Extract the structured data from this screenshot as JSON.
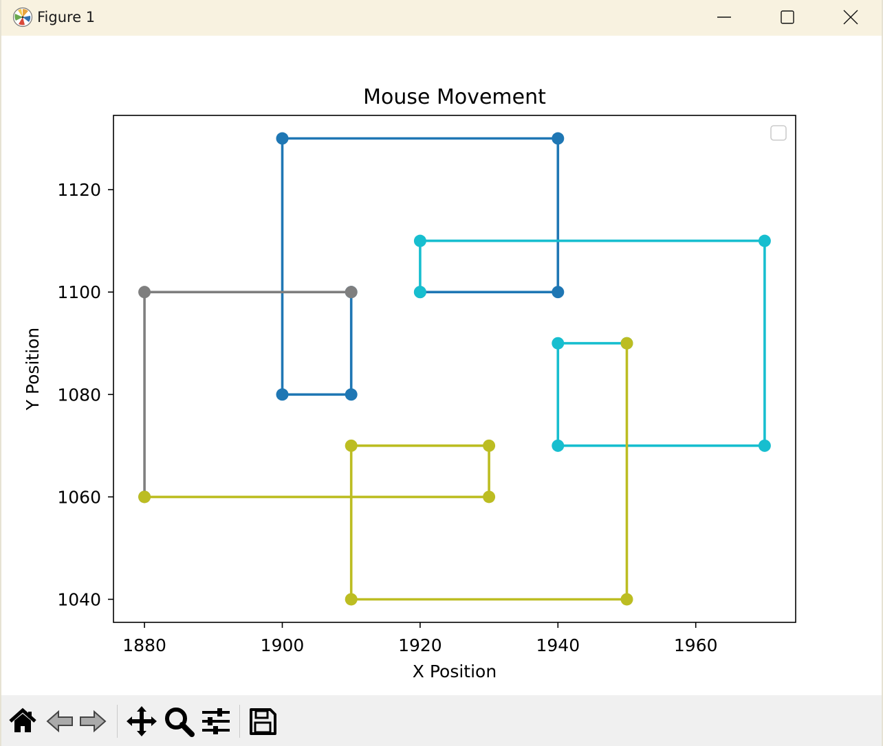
{
  "window": {
    "title": "Figure 1",
    "controls": {
      "minimize": "minimize-icon",
      "maximize": "maximize-icon",
      "close": "close-icon"
    }
  },
  "toolbar": {
    "buttons": [
      {
        "name": "home-icon",
        "tooltip": "Home"
      },
      {
        "name": "back-icon",
        "tooltip": "Back"
      },
      {
        "name": "forward-icon",
        "tooltip": "Forward"
      },
      {
        "name": "pan-icon",
        "tooltip": "Pan"
      },
      {
        "name": "zoom-icon",
        "tooltip": "Zoom"
      },
      {
        "name": "configure-subplots-icon",
        "tooltip": "Subplots"
      },
      {
        "name": "save-icon",
        "tooltip": "Save"
      }
    ]
  },
  "chart_data": {
    "type": "line",
    "title": "Mouse Movement",
    "xlabel": "X Position",
    "ylabel": "Y Position",
    "xlim": [
      1875.5,
      1974.5
    ],
    "ylim": [
      1035.5,
      1134.5
    ],
    "xticks": [
      1880,
      1900,
      1920,
      1940,
      1960
    ],
    "yticks": [
      1040,
      1060,
      1080,
      1100,
      1120
    ],
    "grid": false,
    "legend": {
      "placement": "upper right",
      "entries": []
    },
    "markers": true,
    "segments": [
      {
        "color": "#1f77b4",
        "points": [
          [
            1910,
            1100
          ],
          [
            1910,
            1080
          ],
          [
            1900,
            1080
          ],
          [
            1900,
            1130
          ],
          [
            1940,
            1130
          ],
          [
            1940,
            1100
          ],
          [
            1920,
            1100
          ]
        ]
      },
      {
        "color": "#17becf",
        "points": [
          [
            1920,
            1100
          ],
          [
            1920,
            1110
          ],
          [
            1970,
            1110
          ],
          [
            1970,
            1070
          ],
          [
            1940,
            1070
          ],
          [
            1940,
            1090
          ],
          [
            1950,
            1090
          ]
        ]
      },
      {
        "color": "#7f7f7f",
        "points": [
          [
            1910,
            1100
          ],
          [
            1880,
            1100
          ],
          [
            1880,
            1060
          ]
        ]
      },
      {
        "color": "#bcbd22",
        "points": [
          [
            1880,
            1060
          ],
          [
            1930,
            1060
          ],
          [
            1930,
            1070
          ],
          [
            1910,
            1070
          ],
          [
            1910,
            1040
          ],
          [
            1950,
            1040
          ],
          [
            1950,
            1090
          ]
        ]
      }
    ]
  }
}
